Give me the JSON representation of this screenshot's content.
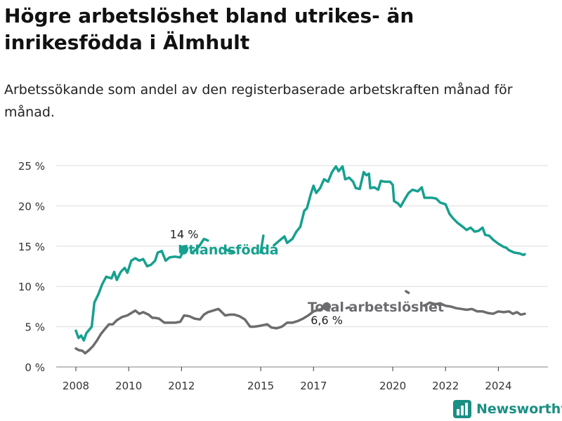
{
  "title": "Högre arbetslöshet bland utrikes- än inrikesfödda i Älmhult",
  "subtitle": "Arbetssökande som andel av den registerbaserade arbetskraften månad för månad.",
  "brand": {
    "name": "Newsworthy",
    "color": "#1a8f83"
  },
  "chart_data": {
    "type": "line",
    "ylim": [
      0,
      25
    ],
    "yticks": [
      0,
      5,
      10,
      15,
      20,
      25
    ],
    "ytick_labels": [
      "0 %",
      "5 %",
      "10 %",
      "15 %",
      "20 %",
      "25 %"
    ],
    "xlim": [
      2008.0,
      2025.0
    ],
    "xticks": [
      2008,
      2010,
      2012,
      2015,
      2017,
      2020,
      2022,
      2024
    ],
    "xtick_labels": [
      "2008",
      "2010",
      "2012",
      "2015",
      "2017",
      "2020",
      "2022",
      "2024"
    ],
    "grid": true,
    "series": [
      {
        "name": "Utlandsfödda",
        "color": "#16a08f",
        "end_label": "14 %",
        "points": [
          [
            2008.0,
            4.5
          ],
          [
            2008.1,
            3.6
          ],
          [
            2008.2,
            3.9
          ],
          [
            2008.3,
            3.3
          ],
          [
            2008.4,
            4.2
          ],
          [
            2008.6,
            5.0
          ],
          [
            2008.7,
            8.0
          ],
          [
            2008.85,
            9.0
          ],
          [
            2009.0,
            10.3
          ],
          [
            2009.15,
            11.2
          ],
          [
            2009.35,
            11.0
          ],
          [
            2009.45,
            11.8
          ],
          [
            2009.55,
            10.8
          ],
          [
            2009.7,
            11.8
          ],
          [
            2009.85,
            12.3
          ],
          [
            2009.95,
            11.7
          ],
          [
            2010.1,
            13.2
          ],
          [
            2010.25,
            13.5
          ],
          [
            2010.4,
            13.2
          ],
          [
            2010.55,
            13.4
          ],
          [
            2010.7,
            12.5
          ],
          [
            2010.85,
            12.7
          ],
          [
            2011.0,
            13.2
          ],
          [
            2011.1,
            14.2
          ],
          [
            2011.25,
            14.4
          ],
          [
            2011.4,
            13.2
          ],
          [
            2011.55,
            13.6
          ],
          [
            2011.75,
            13.7
          ],
          [
            2011.95,
            13.6
          ],
          [
            2012.1,
            14.6
          ]
        ]
      },
      {
        "name": "Utlandsfödda",
        "color": "#16a08f",
        "points": [
          [
            2012.45,
            14.3
          ],
          [
            2012.65,
            14.9
          ],
          [
            2012.85,
            15.9
          ],
          [
            2013.0,
            15.7
          ]
        ]
      },
      {
        "name": "Utlandsfödda",
        "color": "#16a08f",
        "points": [
          [
            2013.6,
            14.7
          ],
          [
            2013.8,
            14.4
          ],
          [
            2014.0,
            14.2
          ]
        ]
      },
      {
        "name": "Utlandsfödda",
        "color": "#16a08f",
        "points": [
          [
            2015.0,
            14.2
          ],
          [
            2015.1,
            16.3
          ]
        ]
      },
      {
        "name": "Utlandsfödda",
        "color": "#16a08f",
        "points": [
          [
            2015.5,
            15.1
          ],
          [
            2015.75,
            15.8
          ],
          [
            2015.9,
            16.2
          ],
          [
            2016.0,
            15.4
          ],
          [
            2016.2,
            15.9
          ],
          [
            2016.35,
            16.8
          ],
          [
            2016.5,
            17.4
          ],
          [
            2016.65,
            19.4
          ],
          [
            2016.75,
            19.7
          ],
          [
            2016.9,
            21.5
          ],
          [
            2017.0,
            22.5
          ],
          [
            2017.1,
            21.6
          ],
          [
            2017.25,
            22.2
          ],
          [
            2017.4,
            23.3
          ],
          [
            2017.55,
            23.0
          ],
          [
            2017.7,
            24.2
          ],
          [
            2017.85,
            24.9
          ],
          [
            2017.95,
            24.3
          ],
          [
            2018.1,
            24.9
          ],
          [
            2018.2,
            23.3
          ],
          [
            2018.35,
            23.5
          ],
          [
            2018.5,
            23.0
          ],
          [
            2018.6,
            22.2
          ],
          [
            2018.75,
            22.1
          ],
          [
            2018.9,
            24.2
          ],
          [
            2019.0,
            23.8
          ],
          [
            2019.1,
            24.0
          ],
          [
            2019.15,
            22.2
          ],
          [
            2019.3,
            22.3
          ],
          [
            2019.45,
            22.0
          ],
          [
            2019.55,
            23.1
          ],
          [
            2019.7,
            23.0
          ],
          [
            2019.9,
            23.0
          ],
          [
            2020.0,
            22.6
          ],
          [
            2020.05,
            20.6
          ],
          [
            2020.2,
            20.3
          ],
          [
            2020.3,
            19.9
          ],
          [
            2020.45,
            20.8
          ],
          [
            2020.6,
            21.6
          ],
          [
            2020.75,
            22.0
          ],
          [
            2020.95,
            21.8
          ],
          [
            2021.1,
            22.3
          ],
          [
            2021.2,
            21.0
          ],
          [
            2021.35,
            21.0
          ],
          [
            2021.5,
            21.0
          ],
          [
            2021.65,
            20.9
          ],
          [
            2021.8,
            20.4
          ],
          [
            2022.0,
            20.2
          ],
          [
            2022.15,
            19.0
          ],
          [
            2022.3,
            18.4
          ],
          [
            2022.45,
            17.9
          ],
          [
            2022.65,
            17.4
          ],
          [
            2022.8,
            17.0
          ],
          [
            2022.95,
            17.3
          ],
          [
            2023.1,
            16.8
          ],
          [
            2023.25,
            16.9
          ],
          [
            2023.4,
            17.3
          ],
          [
            2023.5,
            16.4
          ],
          [
            2023.65,
            16.3
          ],
          [
            2023.8,
            15.8
          ],
          [
            2024.0,
            15.3
          ],
          [
            2024.2,
            14.9
          ],
          [
            2024.3,
            14.8
          ],
          [
            2024.4,
            14.5
          ],
          [
            2024.6,
            14.2
          ],
          [
            2024.8,
            14.1
          ],
          [
            2024.95,
            13.9
          ],
          [
            2025.0,
            14.0
          ]
        ]
      },
      {
        "name": "Total arbetslöshet",
        "color": "#6c6c6f",
        "end_label": "6,6 %",
        "points": [
          [
            2008.0,
            2.3
          ],
          [
            2008.1,
            2.1
          ],
          [
            2008.25,
            2.0
          ],
          [
            2008.35,
            1.7
          ],
          [
            2008.5,
            2.1
          ],
          [
            2008.65,
            2.6
          ],
          [
            2008.8,
            3.3
          ],
          [
            2008.95,
            4.1
          ],
          [
            2009.1,
            4.7
          ],
          [
            2009.25,
            5.3
          ],
          [
            2009.4,
            5.3
          ],
          [
            2009.55,
            5.8
          ],
          [
            2009.75,
            6.2
          ],
          [
            2009.95,
            6.4
          ],
          [
            2010.1,
            6.7
          ],
          [
            2010.25,
            7.0
          ],
          [
            2010.4,
            6.6
          ],
          [
            2010.55,
            6.8
          ],
          [
            2010.75,
            6.5
          ],
          [
            2010.9,
            6.1
          ],
          [
            2011.0,
            6.1
          ],
          [
            2011.15,
            6.0
          ],
          [
            2011.35,
            5.5
          ],
          [
            2011.55,
            5.5
          ],
          [
            2011.75,
            5.5
          ],
          [
            2011.95,
            5.6
          ],
          [
            2012.1,
            6.4
          ],
          [
            2012.3,
            6.3
          ],
          [
            2012.5,
            6.0
          ],
          [
            2012.7,
            5.9
          ],
          [
            2012.85,
            6.5
          ],
          [
            2013.0,
            6.8
          ],
          [
            2013.2,
            7.0
          ],
          [
            2013.4,
            7.2
          ],
          [
            2013.5,
            6.9
          ],
          [
            2013.65,
            6.4
          ],
          [
            2013.85,
            6.5
          ],
          [
            2014.0,
            6.5
          ],
          [
            2014.2,
            6.3
          ],
          [
            2014.4,
            5.9
          ],
          [
            2014.6,
            5.0
          ],
          [
            2014.75,
            5.0
          ],
          [
            2014.95,
            5.1
          ],
          [
            2015.1,
            5.2
          ],
          [
            2015.25,
            5.3
          ],
          [
            2015.4,
            4.9
          ],
          [
            2015.6,
            4.8
          ],
          [
            2015.8,
            5.0
          ],
          [
            2016.0,
            5.5
          ],
          [
            2016.2,
            5.5
          ],
          [
            2016.4,
            5.7
          ],
          [
            2016.6,
            6.0
          ],
          [
            2016.8,
            6.4
          ],
          [
            2017.0,
            6.9
          ],
          [
            2017.2,
            7.1
          ],
          [
            2017.4,
            7.3
          ],
          [
            2017.5,
            7.5
          ]
        ]
      },
      {
        "name": "Total arbetslöshet",
        "color": "#6c6c6f",
        "points": [
          [
            2018.25,
            7.3
          ],
          [
            2018.35,
            7.4
          ]
        ]
      },
      {
        "name": "Total arbetslöshet",
        "color": "#6c6c6f",
        "points": [
          [
            2020.5,
            9.4
          ],
          [
            2020.6,
            9.2
          ]
        ]
      },
      {
        "name": "Total arbetslöshet",
        "color": "#6c6c6f",
        "points": [
          [
            2021.2,
            7.6
          ],
          [
            2021.4,
            8.0
          ],
          [
            2021.6,
            7.8
          ],
          [
            2021.8,
            7.9
          ],
          [
            2022.0,
            7.6
          ],
          [
            2022.2,
            7.5
          ],
          [
            2022.4,
            7.3
          ],
          [
            2022.6,
            7.2
          ],
          [
            2022.8,
            7.1
          ],
          [
            2023.0,
            7.2
          ],
          [
            2023.2,
            6.9
          ],
          [
            2023.4,
            6.9
          ],
          [
            2023.6,
            6.7
          ],
          [
            2023.8,
            6.6
          ],
          [
            2024.0,
            6.9
          ],
          [
            2024.2,
            6.8
          ],
          [
            2024.4,
            6.9
          ],
          [
            2024.55,
            6.6
          ],
          [
            2024.7,
            6.8
          ],
          [
            2024.85,
            6.5
          ],
          [
            2025.0,
            6.6
          ]
        ]
      }
    ],
    "series_labels": [
      {
        "name": "Utlandsfödda",
        "color": "#16a08f"
      },
      {
        "name": "Total arbetslöshet",
        "color": "#6c6c6f"
      }
    ]
  }
}
